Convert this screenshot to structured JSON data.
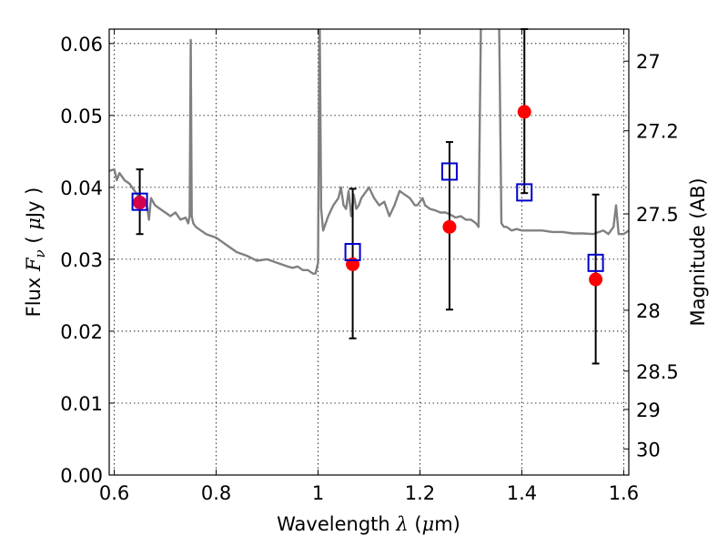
{
  "chart_data": {
    "type": "scatter",
    "title": "",
    "xlabel": {
      "pre": "Wavelength  ",
      "symbol": "λ",
      "post": " (",
      "mu": "μ",
      "unit": "m)"
    },
    "ylabel": {
      "pre": "Flux  ",
      "symbol": "F",
      "sub": "ν",
      "mid": "  ( ",
      "mu": "μ",
      "unit": "Jy )"
    },
    "y2label": "Magnitude (AB)",
    "xlim": [
      0.59,
      1.61
    ],
    "ylim": [
      0.0,
      0.062
    ],
    "grid": true,
    "x_ticks": [
      {
        "value": 0.6,
        "label": "0.6"
      },
      {
        "value": 0.8,
        "label": "0.8"
      },
      {
        "value": 1.0,
        "label": "1"
      },
      {
        "value": 1.2,
        "label": "1.2"
      },
      {
        "value": 1.4,
        "label": "1.4"
      },
      {
        "value": 1.6,
        "label": "1.6"
      }
    ],
    "y_ticks": [
      {
        "value": 0.0,
        "label": "0.00"
      },
      {
        "value": 0.01,
        "label": "0.01"
      },
      {
        "value": 0.02,
        "label": "0.02"
      },
      {
        "value": 0.03,
        "label": "0.03"
      },
      {
        "value": 0.04,
        "label": "0.04"
      },
      {
        "value": 0.05,
        "label": "0.05"
      },
      {
        "value": 0.06,
        "label": "0.06"
      }
    ],
    "y2_ticks": [
      {
        "value": 27,
        "label": "27"
      },
      {
        "value": 27.2,
        "label": "27.2"
      },
      {
        "value": 27.5,
        "label": "27.5"
      },
      {
        "value": 28,
        "label": "28"
      },
      {
        "value": 28.5,
        "label": "28.5"
      },
      {
        "value": 29,
        "label": "29"
      },
      {
        "value": 30,
        "label": "30"
      }
    ],
    "model_spectrum": {
      "color": "#808080",
      "x": [
        0.59,
        0.6,
        0.605,
        0.61,
        0.62,
        0.63,
        0.64,
        0.65,
        0.66,
        0.665,
        0.668,
        0.672,
        0.68,
        0.69,
        0.7,
        0.71,
        0.72,
        0.73,
        0.74,
        0.745,
        0.748,
        0.75,
        0.752,
        0.755,
        0.76,
        0.77,
        0.78,
        0.8,
        0.82,
        0.84,
        0.86,
        0.88,
        0.9,
        0.92,
        0.94,
        0.95,
        0.96,
        0.97,
        0.98,
        0.99,
        0.995,
        1.0,
        1.003,
        1.006,
        1.01,
        1.02,
        1.03,
        1.04,
        1.045,
        1.05,
        1.055,
        1.06,
        1.065,
        1.07,
        1.075,
        1.08,
        1.085,
        1.09,
        1.1,
        1.11,
        1.12,
        1.13,
        1.14,
        1.15,
        1.16,
        1.17,
        1.18,
        1.19,
        1.195,
        1.2,
        1.205,
        1.21,
        1.22,
        1.23,
        1.24,
        1.25,
        1.26,
        1.27,
        1.28,
        1.29,
        1.3,
        1.31,
        1.315,
        1.32,
        1.325,
        1.35,
        1.355,
        1.36,
        1.365,
        1.37,
        1.38,
        1.39,
        1.4,
        1.42,
        1.44,
        1.46,
        1.48,
        1.5,
        1.52,
        1.54,
        1.56,
        1.57,
        1.58,
        1.585,
        1.59,
        1.6,
        1.61
      ],
      "y": [
        0.0423,
        0.0425,
        0.041,
        0.042,
        0.041,
        0.0405,
        0.0395,
        0.0385,
        0.038,
        0.037,
        0.0355,
        0.0385,
        0.0375,
        0.037,
        0.0365,
        0.036,
        0.0365,
        0.0355,
        0.0358,
        0.035,
        0.036,
        0.0605,
        0.036,
        0.035,
        0.0345,
        0.034,
        0.0335,
        0.033,
        0.032,
        0.031,
        0.0305,
        0.0298,
        0.03,
        0.0295,
        0.029,
        0.0288,
        0.029,
        0.0285,
        0.0285,
        0.028,
        0.028,
        0.0295,
        0.065,
        0.037,
        0.034,
        0.036,
        0.0375,
        0.0385,
        0.04,
        0.0375,
        0.037,
        0.0395,
        0.036,
        0.039,
        0.037,
        0.0375,
        0.0385,
        0.039,
        0.04,
        0.0385,
        0.0375,
        0.038,
        0.036,
        0.0375,
        0.0395,
        0.039,
        0.0385,
        0.0375,
        0.0375,
        0.038,
        0.0385,
        0.0375,
        0.037,
        0.0368,
        0.0365,
        0.0365,
        0.0362,
        0.0358,
        0.036,
        0.0355,
        0.0355,
        0.035,
        0.0345,
        0.065,
        0.065,
        0.065,
        0.065,
        0.035,
        0.0345,
        0.0345,
        0.034,
        0.0342,
        0.034,
        0.034,
        0.034,
        0.0338,
        0.0338,
        0.0336,
        0.0336,
        0.0335,
        0.034,
        0.0335,
        0.0345,
        0.0375,
        0.0335,
        0.0335,
        0.034
      ]
    },
    "series": [
      {
        "marker": "circle",
        "color": "#ff0000",
        "x": [
          0.65,
          1.068,
          1.258,
          1.405,
          1.545
        ],
        "y": [
          0.0379,
          0.0293,
          0.0345,
          0.0505,
          0.0272
        ]
      },
      {
        "marker": "open-square",
        "color": "#0000cc",
        "x": [
          0.65,
          1.068,
          1.258,
          1.405,
          1.545
        ],
        "y": [
          0.038,
          0.031,
          0.0422,
          0.0393,
          0.0295
        ]
      }
    ],
    "error_bars": {
      "color": "#000000",
      "x": [
        0.65,
        1.068,
        1.258,
        1.405,
        1.545
      ],
      "y_low": [
        0.0335,
        0.019,
        0.023,
        0.0392,
        0.0155
      ],
      "y_high": [
        0.0425,
        0.0398,
        0.0463,
        0.062,
        0.039
      ]
    }
  }
}
